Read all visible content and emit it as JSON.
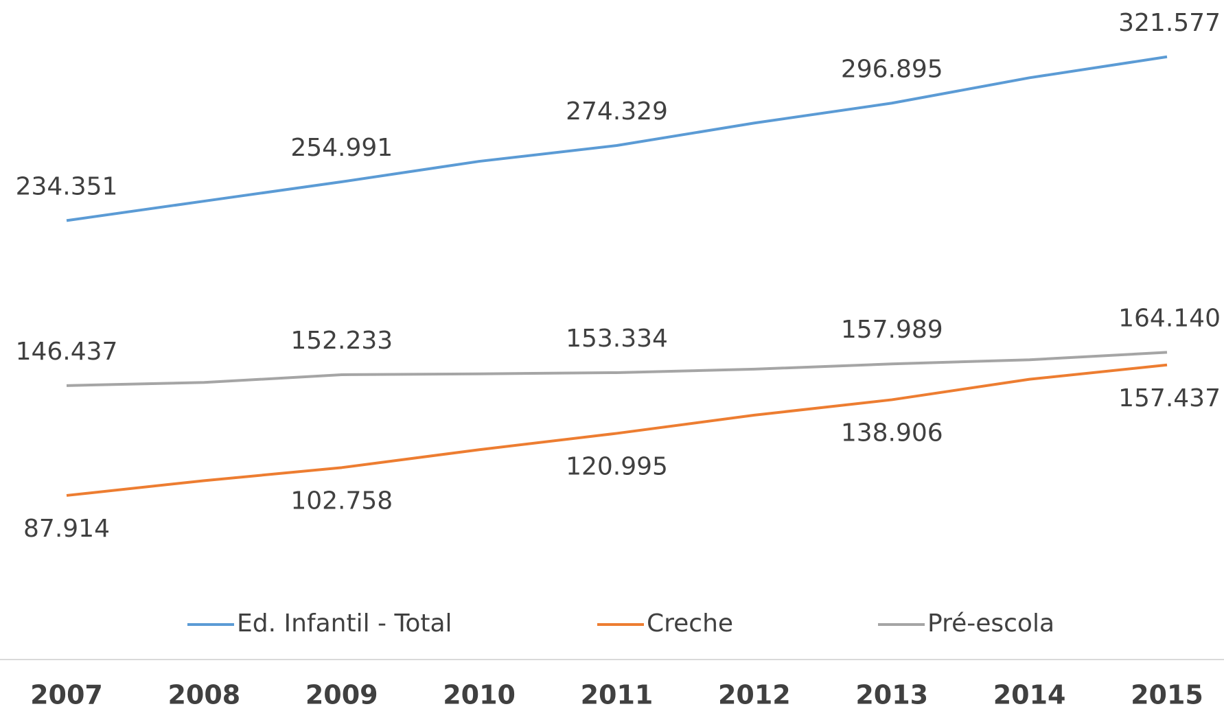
{
  "chart_data": {
    "type": "line",
    "categories": [
      "2007",
      "2008",
      "2009",
      "2010",
      "2011",
      "2012",
      "2013",
      "2014",
      "2015"
    ],
    "series": [
      {
        "name": "Ed. Infantil - Total",
        "color": "#5b9bd5",
        "label_position": "above",
        "values": [
          234351,
          244700,
          254991,
          265900,
          274329,
          286300,
          296895,
          310400,
          321577
        ],
        "value_labels": [
          "234.351",
          null,
          "254.991",
          null,
          "274.329",
          null,
          "296.895",
          null,
          "321.577"
        ]
      },
      {
        "name": "Creche",
        "color": "#ed7d31",
        "label_position": "below",
        "values": [
          87914,
          95800,
          102758,
          112300,
          120995,
          130700,
          138906,
          149800,
          157437
        ],
        "value_labels": [
          "87.914",
          null,
          "102.758",
          null,
          "120.995",
          null,
          "138.906",
          null,
          "157.437"
        ]
      },
      {
        "name": "Pré-escola",
        "color": "#a5a5a5",
        "label_position": "above",
        "values": [
          146437,
          148100,
          152233,
          152700,
          153334,
          155200,
          157989,
          160200,
          164140
        ],
        "value_labels": [
          "146.437",
          null,
          "152.233",
          null,
          "153.334",
          null,
          "157.989",
          null,
          "164.140"
        ]
      }
    ],
    "ylim": [
      40000,
      350000
    ],
    "legend": "bottom"
  }
}
